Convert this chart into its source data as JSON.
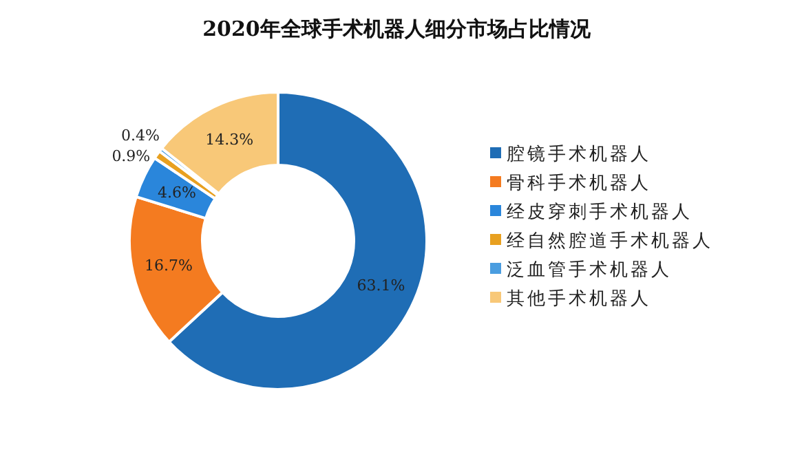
{
  "chart_data": {
    "type": "donut",
    "title": "2020年全球手术机器人细分市场占比情况",
    "categories": [
      "腔镜手术机器人",
      "骨科手术机器人",
      "经皮穿刺手术机器人",
      "经自然腔道手术机器人",
      "泛血管手术机器人",
      "其他手术机器人"
    ],
    "values": [
      63.1,
      16.7,
      4.6,
      0.9,
      0.4,
      14.3
    ],
    "value_labels": [
      "63.1%",
      "16.7%",
      "4.6%",
      "0.9%",
      "0.4%",
      "14.3%"
    ],
    "colors": [
      "#1f6db5",
      "#f47b20",
      "#2a86db",
      "#e8a020",
      "#4a9de0",
      "#f8c878"
    ],
    "legend": "right"
  }
}
